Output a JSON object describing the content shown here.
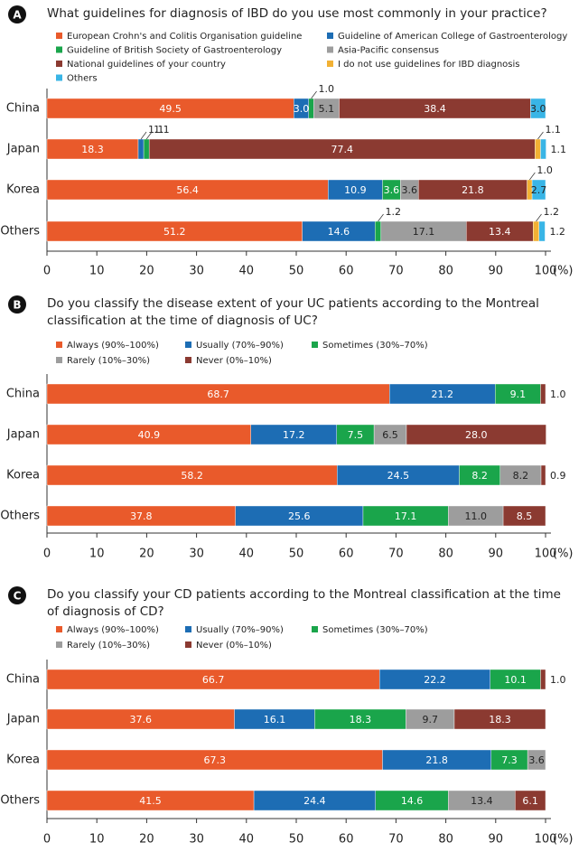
{
  "chart_data": [
    {
      "type": "stacked-barh",
      "label": "A",
      "title": "What guidelines for diagnosis of IBD do you use most commonly in your practice?",
      "categories": [
        "China",
        "Japan",
        "Korea",
        "Others"
      ],
      "series": [
        {
          "name": "European Crohn's and Colitis Organisation guideline",
          "color": "#e95a2b",
          "values": [
            49.5,
            18.3,
            56.4,
            51.2
          ],
          "value_labels": [
            "49.5",
            "18.3",
            "56.4",
            "51.2"
          ]
        },
        {
          "name": "Guideline of American College of Gastroenterology",
          "color": "#1d6db4",
          "values": [
            3.0,
            1.1,
            10.9,
            14.6
          ],
          "value_labels": [
            "3.0",
            "1.1",
            "10.9",
            "14.6"
          ]
        },
        {
          "name": "Guideline of British Society of Gastroenterology",
          "color": "#1aa54b",
          "values": [
            1.0,
            1.1,
            3.6,
            1.2
          ],
          "value_labels": [
            "1.0",
            "1.1",
            "3.6",
            "1.2"
          ]
        },
        {
          "name": "Asia-Pacific consensus",
          "color": "#9d9d9d",
          "values": [
            5.1,
            0,
            3.6,
            17.1
          ],
          "value_labels": [
            "5.1",
            null,
            "3.6",
            "17.1"
          ]
        },
        {
          "name": "National guidelines of your country",
          "color": "#8b3a31",
          "values": [
            38.4,
            77.4,
            21.8,
            13.4
          ],
          "value_labels": [
            "38.4",
            "77.4",
            "21.8",
            "13.4"
          ]
        },
        {
          "name": "I do not use guidelines for IBD diagnosis",
          "color": "#f2b134",
          "values": [
            0,
            1.1,
            1.0,
            1.2
          ],
          "value_labels": [
            null,
            "1.1",
            "1.0",
            "1.2"
          ]
        },
        {
          "name": "Others",
          "color": "#39b5e6",
          "values": [
            3.0,
            1.1,
            2.7,
            1.2
          ],
          "value_labels": [
            "3.0",
            "1.1",
            "2.7",
            "1.2"
          ]
        }
      ],
      "xlim": [
        0,
        100
      ],
      "xticks": [
        0,
        10,
        20,
        30,
        40,
        50,
        60,
        70,
        80,
        90,
        100
      ],
      "x_unit": "(%)",
      "legend_columns": 2
    },
    {
      "type": "stacked-barh",
      "label": "B",
      "title": "Do you classify the disease extent of your UC patients according to the Montreal classification at the time of diagnosis of UC?",
      "categories": [
        "China",
        "Japan",
        "Korea",
        "Others"
      ],
      "series": [
        {
          "name": "Always (90%–100%)",
          "color": "#e95a2b",
          "values": [
            68.7,
            40.9,
            58.2,
            37.8
          ],
          "value_labels": [
            "68.7",
            "40.9",
            "58.2",
            "37.8"
          ]
        },
        {
          "name": "Usually (70%–90%)",
          "color": "#1d6db4",
          "values": [
            21.2,
            17.2,
            24.5,
            25.6
          ],
          "value_labels": [
            "21.2",
            "17.2",
            "24.5",
            "25.6"
          ]
        },
        {
          "name": "Sometimes (30%–70%)",
          "color": "#1aa54b",
          "values": [
            9.1,
            7.5,
            8.2,
            17.1
          ],
          "value_labels": [
            "9.1",
            "7.5",
            "8.2",
            "17.1"
          ]
        },
        {
          "name": "Rarely (10%–30%)",
          "color": "#9d9d9d",
          "values": [
            0,
            6.5,
            8.2,
            11.0
          ],
          "value_labels": [
            null,
            "6.5",
            "8.2",
            "11.0"
          ]
        },
        {
          "name": "Never (0%–10%)",
          "color": "#8b3a31",
          "values": [
            1.0,
            28.0,
            0.9,
            8.5
          ],
          "value_labels": [
            "1.0",
            "28.0",
            "0.9",
            "8.5"
          ]
        }
      ],
      "xlim": [
        0,
        100
      ],
      "xticks": [
        0,
        10,
        20,
        30,
        40,
        50,
        60,
        70,
        80,
        90,
        100
      ],
      "x_unit": "(%)",
      "legend_columns": 3
    },
    {
      "type": "stacked-barh",
      "label": "C",
      "title": "Do you classify your CD patients according to the Montreal classification at the time of diagnosis of CD?",
      "categories": [
        "China",
        "Japan",
        "Korea",
        "Others"
      ],
      "series": [
        {
          "name": "Always (90%–100%)",
          "color": "#e95a2b",
          "values": [
            66.7,
            37.6,
            67.3,
            41.5
          ],
          "value_labels": [
            "66.7",
            "37.6",
            "67.3",
            "41.5"
          ]
        },
        {
          "name": "Usually (70%–90%)",
          "color": "#1d6db4",
          "values": [
            22.2,
            16.1,
            21.8,
            24.4
          ],
          "value_labels": [
            "22.2",
            "16.1",
            "21.8",
            "24.4"
          ]
        },
        {
          "name": "Sometimes (30%–70%)",
          "color": "#1aa54b",
          "values": [
            10.1,
            18.3,
            7.3,
            14.6
          ],
          "value_labels": [
            "10.1",
            "18.3",
            "7.3",
            "14.6"
          ]
        },
        {
          "name": "Rarely (10%–30%)",
          "color": "#9d9d9d",
          "values": [
            0,
            9.7,
            3.6,
            13.4
          ],
          "value_labels": [
            null,
            "9.7",
            "3.6",
            "13.4"
          ]
        },
        {
          "name": "Never (0%–10%)",
          "color": "#8b3a31",
          "values": [
            1.0,
            18.3,
            0,
            6.1
          ],
          "value_labels": [
            "1.0",
            "18.3",
            null,
            "6.1"
          ]
        }
      ],
      "xlim": [
        0,
        100
      ],
      "xticks": [
        0,
        10,
        20,
        30,
        40,
        50,
        60,
        70,
        80,
        90,
        100
      ],
      "x_unit": "(%)",
      "legend_columns": 3
    }
  ]
}
